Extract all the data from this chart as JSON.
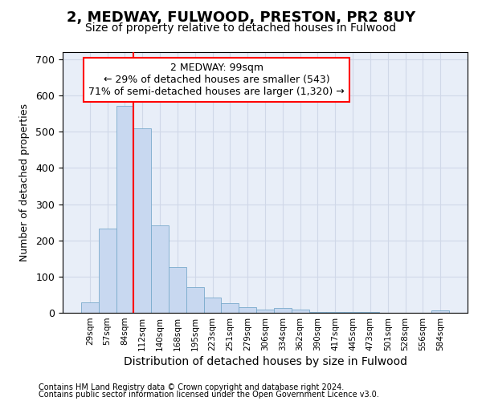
{
  "title": "2, MEDWAY, FULWOOD, PRESTON, PR2 8UY",
  "subtitle": "Size of property relative to detached houses in Fulwood",
  "xlabel": "Distribution of detached houses by size in Fulwood",
  "ylabel": "Number of detached properties",
  "footnote1": "Contains HM Land Registry data © Crown copyright and database right 2024.",
  "footnote2": "Contains public sector information licensed under the Open Government Licence v3.0.",
  "bar_labels": [
    "29sqm",
    "57sqm",
    "84sqm",
    "112sqm",
    "140sqm",
    "168sqm",
    "195sqm",
    "223sqm",
    "251sqm",
    "279sqm",
    "306sqm",
    "334sqm",
    "362sqm",
    "390sqm",
    "417sqm",
    "445sqm",
    "473sqm",
    "501sqm",
    "528sqm",
    "556sqm",
    "584sqm"
  ],
  "bar_values": [
    28,
    232,
    572,
    510,
    242,
    126,
    70,
    42,
    27,
    15,
    8,
    13,
    8,
    3,
    3,
    3,
    2,
    1,
    1,
    1,
    6
  ],
  "bar_color": "#c8d8f0",
  "bar_edge_color": "#7aabcc",
  "grid_color": "#d0d8e8",
  "background_color": "#e8eef8",
  "vline_color": "red",
  "vline_x_index": 2.5,
  "annotation_text": "2 MEDWAY: 99sqm\n← 29% of detached houses are smaller (543)\n71% of semi-detached houses are larger (1,320) →",
  "annotation_box_color": "white",
  "annotation_box_edge": "red",
  "ylim": [
    0,
    720
  ],
  "yticks": [
    0,
    100,
    200,
    300,
    400,
    500,
    600,
    700
  ],
  "title_fontsize": 13,
  "subtitle_fontsize": 10,
  "ylabel_fontsize": 9,
  "xlabel_fontsize": 10,
  "footnote_fontsize": 7
}
